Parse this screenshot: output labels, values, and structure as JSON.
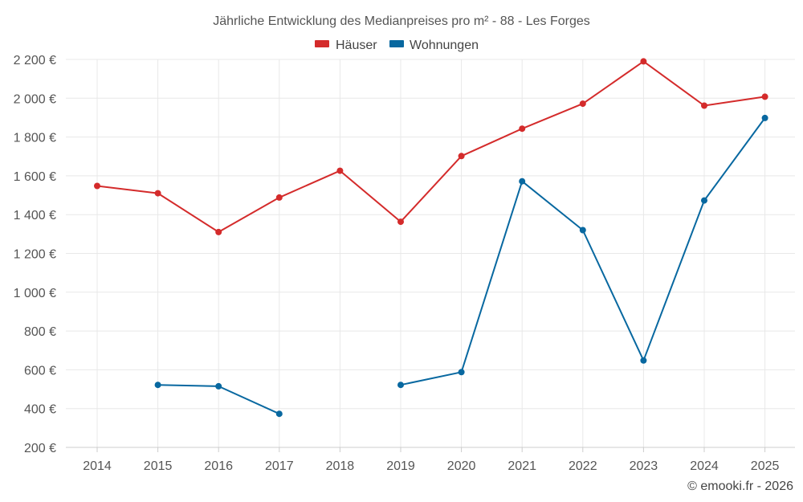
{
  "chart_data": {
    "type": "line",
    "title": "Jährliche Entwicklung des Medianpreises pro m² - 88 - Les Forges",
    "x": [
      2014,
      2015,
      2016,
      2017,
      2018,
      2019,
      2020,
      2021,
      2022,
      2023,
      2024,
      2025
    ],
    "x_tick_labels": [
      "2014",
      "2015",
      "2016",
      "2017",
      "2018",
      "2019",
      "2020",
      "2021",
      "2022",
      "2023",
      "2024",
      "2025"
    ],
    "ylim": [
      200,
      2200
    ],
    "y_ticks": [
      200,
      400,
      600,
      800,
      1000,
      1200,
      1400,
      1600,
      1800,
      2000,
      2200
    ],
    "y_tick_labels": [
      "200 €",
      "400 €",
      "600 €",
      "800 €",
      "1 000 €",
      "1 200 €",
      "1 400 €",
      "1 600 €",
      "1 800 €",
      "2 000 €",
      "2 200 €"
    ],
    "grid": true,
    "legend_position": "top-center",
    "series": [
      {
        "name": "Häuser",
        "color": "#d42b2b",
        "values": [
          1548,
          1510,
          1310,
          1488,
          1626,
          1363,
          1702,
          1843,
          1972,
          2190,
          1962,
          2008
        ]
      },
      {
        "name": "Wohnungen",
        "color": "#0868a0",
        "values": [
          null,
          522,
          515,
          373,
          null,
          522,
          588,
          1572,
          1320,
          648,
          1473,
          1898
        ]
      }
    ],
    "credit": "© emooki.fr - 2026"
  }
}
